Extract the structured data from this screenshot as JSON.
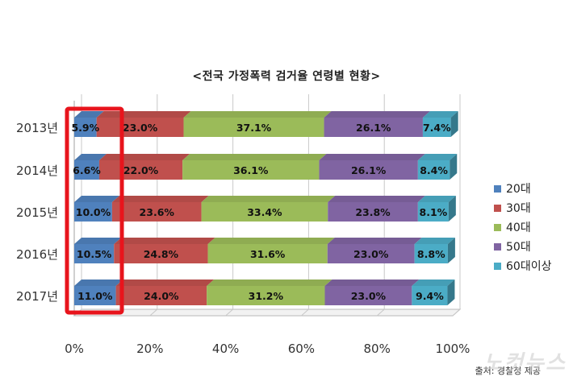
{
  "chart_data": {
    "type": "bar",
    "orientation": "horizontal",
    "stacked": "100%",
    "title": "<전국 가정폭력 검거율 연령별 현황>",
    "categories": [
      "2013년",
      "2014년",
      "2015년",
      "2016년",
      "2017년"
    ],
    "series": [
      {
        "name": "20대",
        "color": "#4f81bd",
        "values": [
          5.9,
          6.6,
          10.0,
          10.5,
          11.0
        ]
      },
      {
        "name": "30대",
        "color": "#c0504d",
        "values": [
          23.0,
          22.0,
          23.6,
          24.8,
          24.0
        ]
      },
      {
        "name": "40대",
        "color": "#9bbb59",
        "values": [
          37.1,
          36.1,
          33.4,
          31.6,
          31.2
        ]
      },
      {
        "name": "50대",
        "color": "#8064a2",
        "values": [
          26.1,
          26.1,
          23.8,
          23.0,
          23.0
        ]
      },
      {
        "name": "60대이상",
        "color": "#4bacc6",
        "values": [
          7.4,
          8.4,
          8.1,
          8.8,
          9.4
        ]
      }
    ],
    "data_labels": [
      [
        "5.9%",
        "23.0%",
        "37.1%",
        "26.1%",
        "7.4%"
      ],
      [
        "6.6%",
        "22.0%",
        "36.1%",
        "26.1%",
        "8.4%"
      ],
      [
        "10.0%",
        "23.6%",
        "33.4%",
        "23.8%",
        "8.1%"
      ],
      [
        "10.5%",
        "24.8%",
        "31.6%",
        "23.0%",
        "8.8%"
      ],
      [
        "11.0%",
        "24.0%",
        "31.2%",
        "23.0%",
        "9.4%"
      ]
    ],
    "x_ticks": [
      "0%",
      "20%",
      "40%",
      "60%",
      "80%",
      "100%"
    ],
    "xlim": [
      0,
      100
    ],
    "grid": true,
    "legend": "right",
    "highlight_color": "#e8141c",
    "highlight_series": "20대"
  },
  "credit": "출처: 경찰청 제공",
  "watermark": "노컷뉴스"
}
